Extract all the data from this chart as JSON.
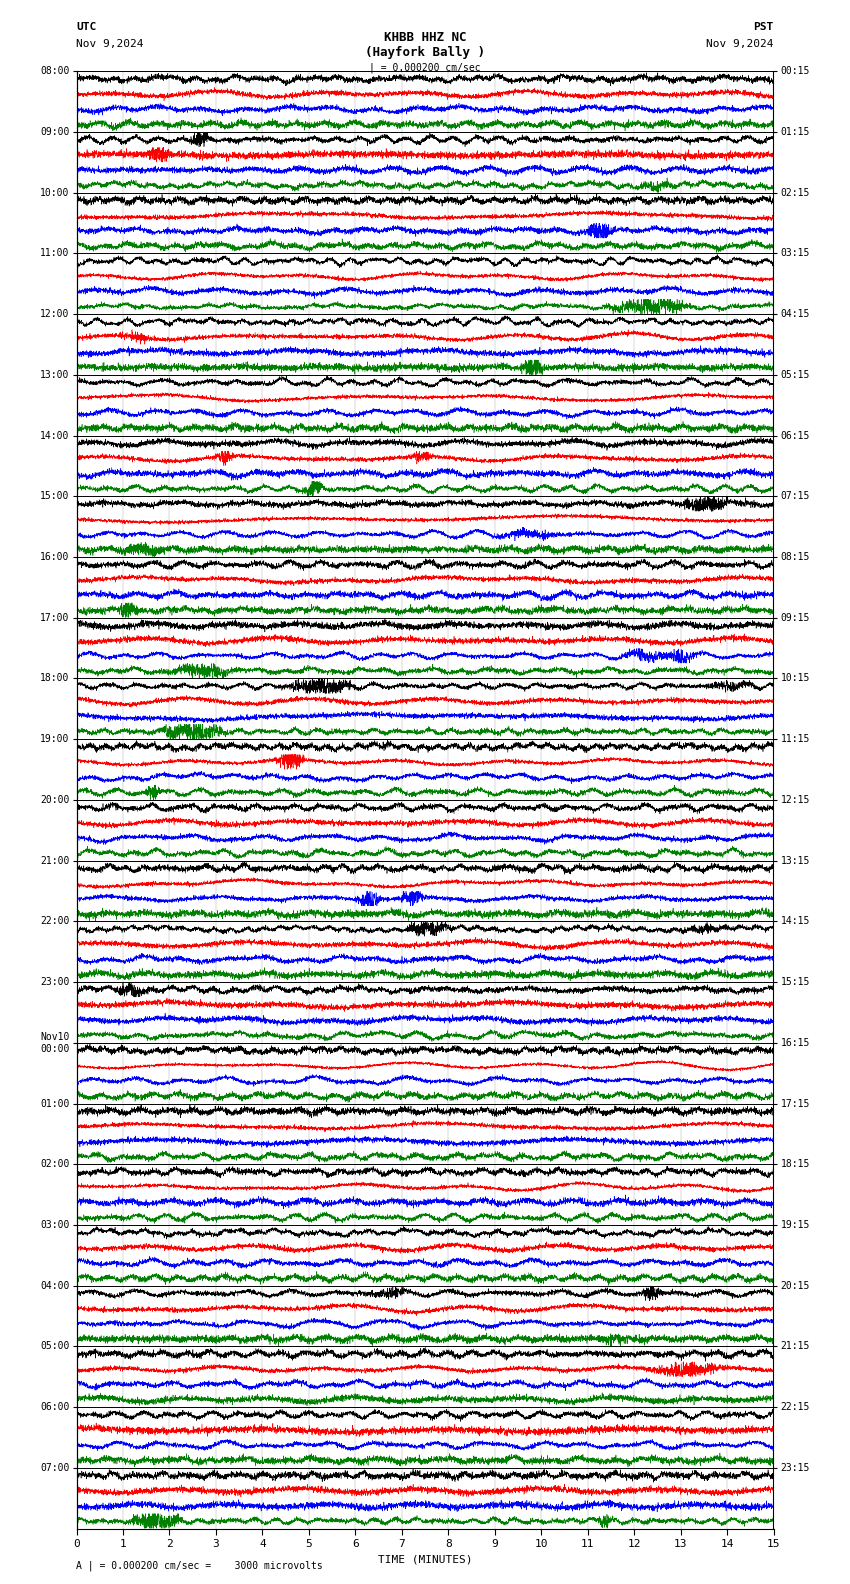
{
  "title_center_line1": "KHBB HHZ NC",
  "title_center_line2": "(Hayfork Bally )",
  "title_left_line1": "UTC",
  "title_left_line2": "Nov 9,2024",
  "title_right_line1": "PST",
  "title_right_line2": "Nov 9,2024",
  "scale_text": "| = 0.000200 cm/sec",
  "bottom_text": "A | = 0.000200 cm/sec =    3000 microvolts",
  "xlabel": "TIME (MINUTES)",
  "colors": [
    "black",
    "red",
    "blue",
    "green"
  ],
  "n_channels": 4,
  "fig_width": 8.5,
  "fig_height": 15.84,
  "hour_labels_utc": [
    "08:00",
    "09:00",
    "10:00",
    "11:00",
    "12:00",
    "13:00",
    "14:00",
    "15:00",
    "16:00",
    "17:00",
    "18:00",
    "19:00",
    "20:00",
    "21:00",
    "22:00",
    "23:00",
    "Nov10\n00:00",
    "01:00",
    "02:00",
    "03:00",
    "04:00",
    "05:00",
    "06:00",
    "07:00"
  ],
  "hour_labels_pst": [
    "00:15",
    "01:15",
    "02:15",
    "03:15",
    "04:15",
    "05:15",
    "06:15",
    "07:15",
    "08:15",
    "09:15",
    "10:15",
    "11:15",
    "12:15",
    "13:15",
    "14:15",
    "15:15",
    "16:15",
    "17:15",
    "18:15",
    "19:15",
    "20:15",
    "21:15",
    "22:15",
    "23:15"
  ]
}
